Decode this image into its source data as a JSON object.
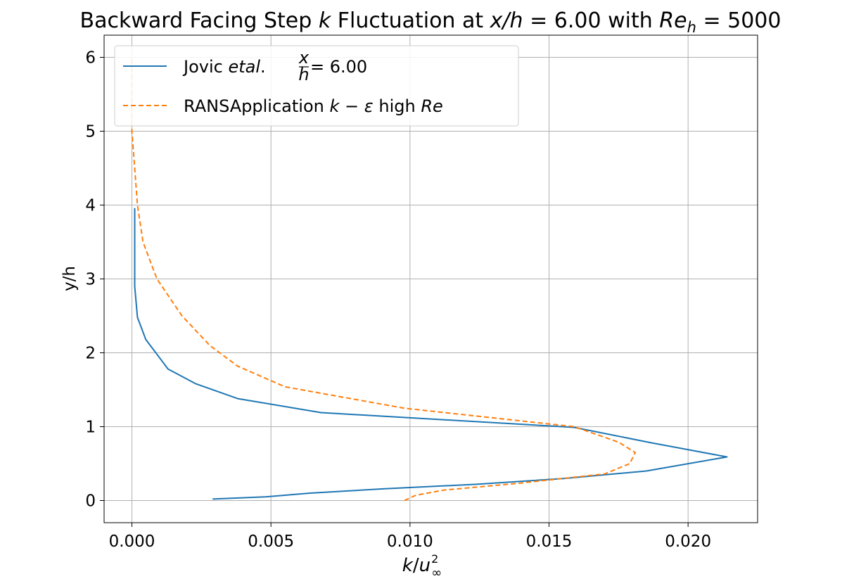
{
  "chart_data": {
    "type": "line",
    "title": {
      "prefix": "Backward Facing Step ",
      "k": "k",
      "middle": " Fluctuation at ",
      "xh": "x/h",
      "eq1": " = 6.00 with ",
      "re": "Re",
      "re_sub": "h",
      "eq2": " = 5000"
    },
    "xlabel": {
      "k": "k",
      "slash": "/",
      "u": "u",
      "sub": "∞",
      "sup": "2"
    },
    "ylabel": "y/h",
    "xlim": [
      -0.001,
      0.0225
    ],
    "ylim": [
      -0.3,
      6.3
    ],
    "xticks": [
      0.0,
      0.005,
      0.01,
      0.015,
      0.02
    ],
    "xtick_labels": [
      "0.000",
      "0.005",
      "0.010",
      "0.015",
      "0.020"
    ],
    "yticks": [
      0,
      1,
      2,
      3,
      4,
      5,
      6
    ],
    "ytick_labels": [
      "0",
      "1",
      "2",
      "3",
      "4",
      "5",
      "6"
    ],
    "grid": true,
    "legend_position": "top-left",
    "series": [
      {
        "name": "Jovic etal. x/h = 6.00",
        "legend": {
          "text1": "Jovic ",
          "ital": "etal",
          "text2": ". ",
          "num": "x",
          "den": "h",
          "eq": " = 6.00"
        },
        "color": "#1f77b4",
        "style": "solid",
        "x": [
          0.0029,
          0.0048,
          0.0064,
          0.0091,
          0.0124,
          0.0156,
          0.0185,
          0.0214,
          0.0187,
          0.0159,
          0.0068,
          0.0038,
          0.0023,
          0.0013,
          0.0005,
          0.0002,
          0.0001,
          0.0001
        ],
        "y": [
          0.02,
          0.05,
          0.1,
          0.16,
          0.22,
          0.3,
          0.4,
          0.59,
          0.78,
          0.99,
          1.19,
          1.38,
          1.58,
          1.78,
          2.18,
          2.48,
          2.9,
          3.96
        ]
      },
      {
        "name": "RANSApplication k − ε high Re",
        "legend": {
          "text1": "RANSApplication ",
          "k": "k",
          "op": " − ",
          "eps": "ε",
          "text2": " high ",
          "re": "Re"
        },
        "color": "#ff7f0e",
        "style": "dashed",
        "x": [
          0.0098,
          0.0102,
          0.0112,
          0.0138,
          0.017,
          0.0179,
          0.0181,
          0.0175,
          0.0159,
          0.0098,
          0.0055,
          0.0038,
          0.0028,
          0.0018,
          0.0009,
          0.0004,
          0.0002,
          0.0001,
          0.0,
          0.0
        ],
        "y": [
          0.0,
          0.07,
          0.14,
          0.23,
          0.36,
          0.5,
          0.65,
          0.79,
          1.0,
          1.25,
          1.54,
          1.82,
          2.1,
          2.5,
          3.0,
          3.5,
          4.0,
          4.5,
          5.0,
          6.0
        ]
      }
    ]
  }
}
